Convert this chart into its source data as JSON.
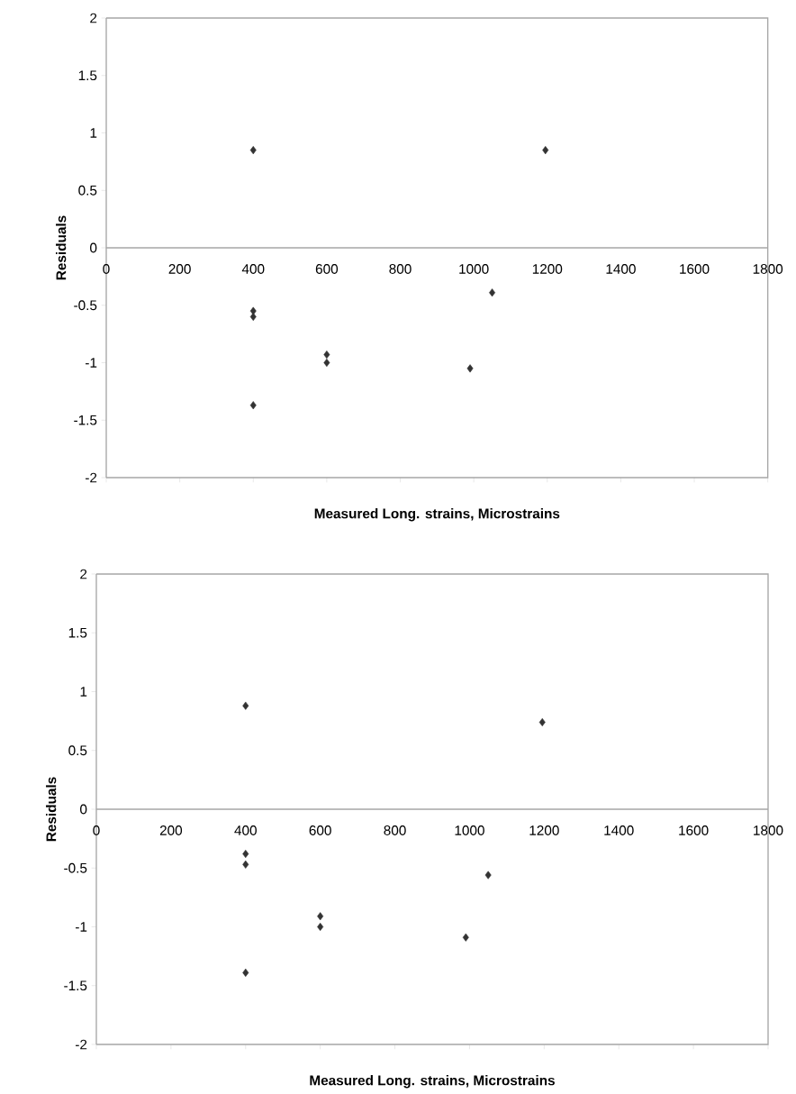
{
  "chart_data": [
    {
      "type": "scatter",
      "xlabel": "Measured Long. strains, Microstrains",
      "ylabel": "Residuals",
      "x": [
        400,
        400,
        400,
        400,
        600,
        600,
        990,
        1050,
        1195
      ],
      "values": [
        0.85,
        -0.55,
        -0.6,
        -1.37,
        -0.93,
        -1.0,
        -1.05,
        -0.39,
        0.85
      ],
      "color": "#333333",
      "marker": "diamond",
      "xlim": [
        0,
        1800
      ],
      "xticks": [
        0,
        200,
        400,
        600,
        800,
        1000,
        1200,
        1400,
        1600,
        1800
      ],
      "ylim": [
        -2,
        2
      ],
      "yticks": [
        -2,
        -1.5,
        -1,
        -0.5,
        0,
        0.5,
        1,
        1.5,
        2
      ],
      "grid": false
    },
    {
      "type": "scatter",
      "xlabel": "Measured Long. strains, Microstrains",
      "ylabel": "Residuals",
      "x": [
        400,
        400,
        400,
        400,
        600,
        600,
        990,
        1050,
        1195
      ],
      "values": [
        0.88,
        -0.38,
        -0.47,
        -1.39,
        -0.91,
        -1.0,
        -1.09,
        -0.56,
        0.74
      ],
      "color": "#333333",
      "marker": "diamond",
      "xlim": [
        0,
        1800
      ],
      "xticks": [
        0,
        200,
        400,
        600,
        800,
        1000,
        1200,
        1400,
        1600,
        1800
      ],
      "ylim": [
        -2,
        2
      ],
      "yticks": [
        -2,
        -1.5,
        -1,
        -0.5,
        0,
        0.5,
        1,
        1.5,
        2
      ],
      "grid": false
    }
  ]
}
